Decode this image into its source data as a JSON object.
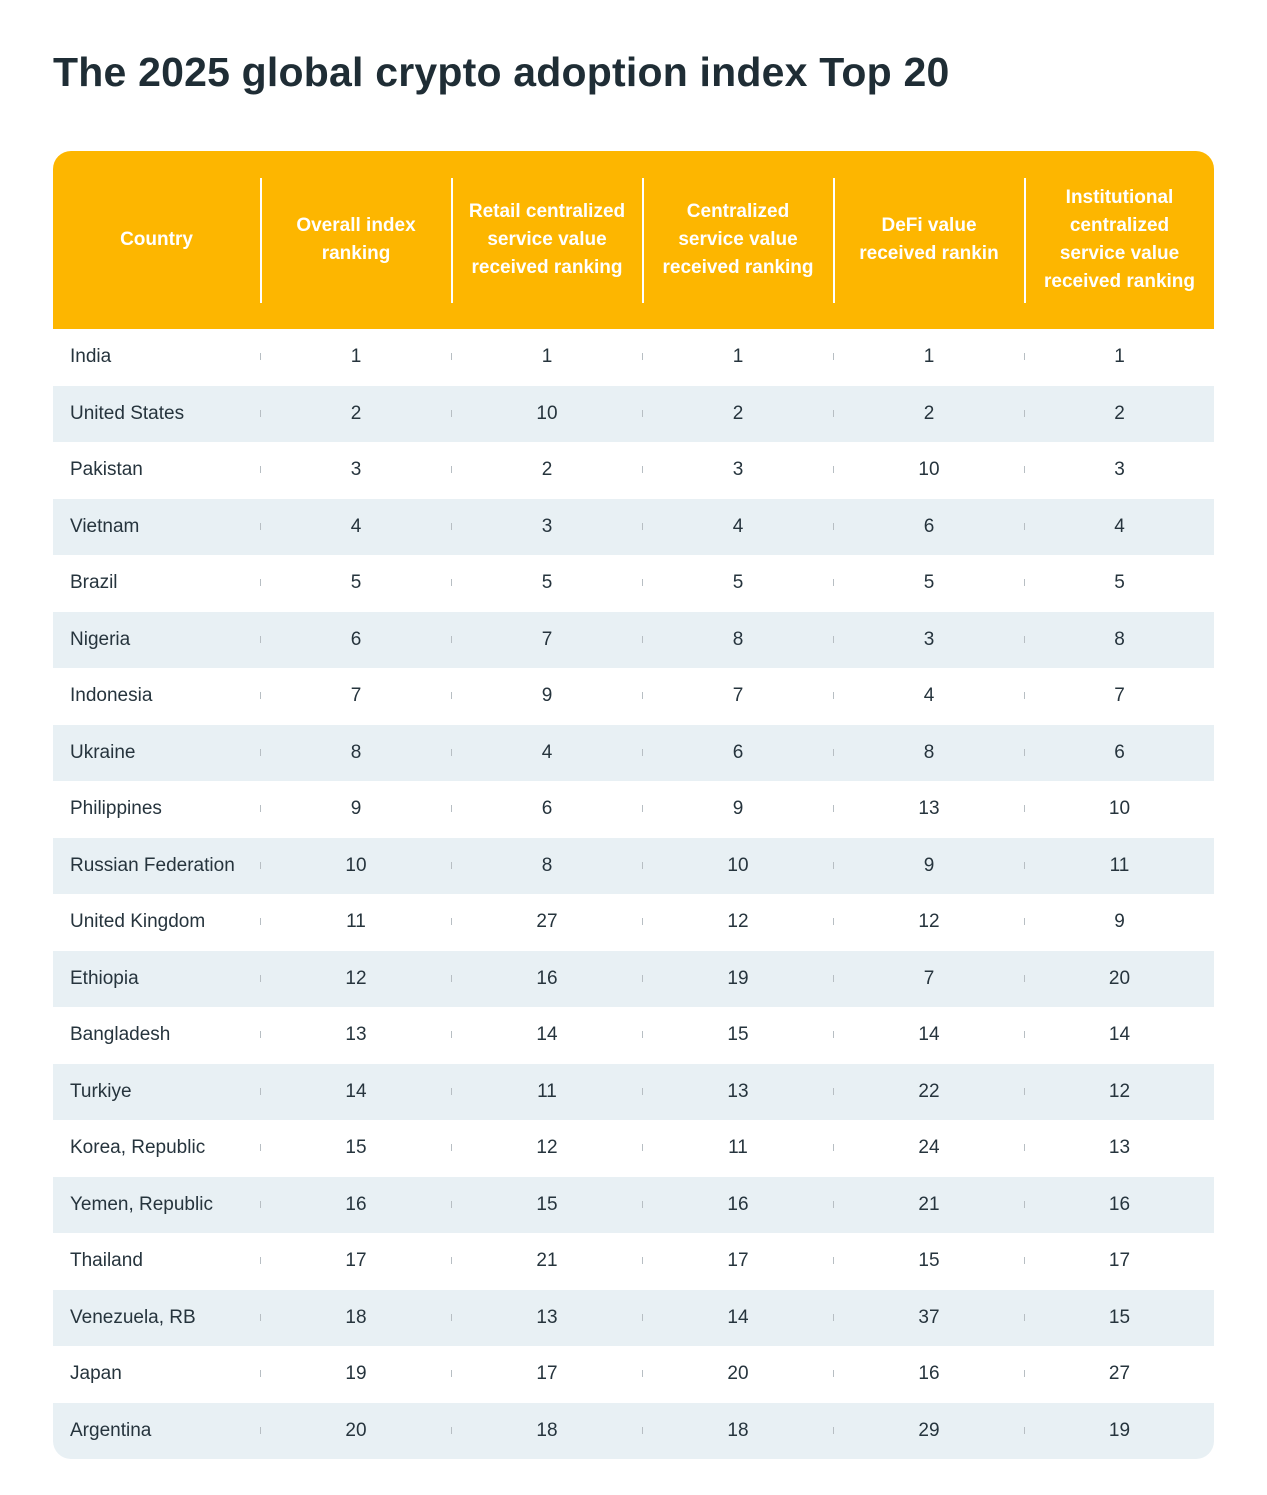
{
  "title": "The 2025 global crypto adoption index Top 20",
  "colors": {
    "header_background": "#fdb600",
    "header_text": "#ffffff",
    "stripe_row": "#e8f0f4",
    "body_text": "#26343d"
  },
  "chart_data": {
    "type": "table",
    "title": "The 2025 global crypto adoption index Top 20",
    "columns": [
      {
        "key": "country",
        "label": "Country"
      },
      {
        "key": "overall",
        "label": "Overall index ranking"
      },
      {
        "key": "retail",
        "label": "Retail centralized service value received ranking"
      },
      {
        "key": "centralized",
        "label": "Centralized service value received ranking"
      },
      {
        "key": "defi",
        "label": "DeFi value received rankin"
      },
      {
        "key": "institutional",
        "label": "Institutional centralized service value received ranking"
      }
    ],
    "rows": [
      {
        "country": "India",
        "overall": 1,
        "retail": 1,
        "centralized": 1,
        "defi": 1,
        "institutional": 1
      },
      {
        "country": "United States",
        "overall": 2,
        "retail": 10,
        "centralized": 2,
        "defi": 2,
        "institutional": 2
      },
      {
        "country": "Pakistan",
        "overall": 3,
        "retail": 2,
        "centralized": 3,
        "defi": 10,
        "institutional": 3
      },
      {
        "country": "Vietnam",
        "overall": 4,
        "retail": 3,
        "centralized": 4,
        "defi": 6,
        "institutional": 4
      },
      {
        "country": "Brazil",
        "overall": 5,
        "retail": 5,
        "centralized": 5,
        "defi": 5,
        "institutional": 5
      },
      {
        "country": "Nigeria",
        "overall": 6,
        "retail": 7,
        "centralized": 8,
        "defi": 3,
        "institutional": 8
      },
      {
        "country": "Indonesia",
        "overall": 7,
        "retail": 9,
        "centralized": 7,
        "defi": 4,
        "institutional": 7
      },
      {
        "country": "Ukraine",
        "overall": 8,
        "retail": 4,
        "centralized": 6,
        "defi": 8,
        "institutional": 6
      },
      {
        "country": "Philippines",
        "overall": 9,
        "retail": 6,
        "centralized": 9,
        "defi": 13,
        "institutional": 10
      },
      {
        "country": "Russian Federation",
        "overall": 10,
        "retail": 8,
        "centralized": 10,
        "defi": 9,
        "institutional": 11
      },
      {
        "country": "United Kingdom",
        "overall": 11,
        "retail": 27,
        "centralized": 12,
        "defi": 12,
        "institutional": 9
      },
      {
        "country": "Ethiopia",
        "overall": 12,
        "retail": 16,
        "centralized": 19,
        "defi": 7,
        "institutional": 20
      },
      {
        "country": "Bangladesh",
        "overall": 13,
        "retail": 14,
        "centralized": 15,
        "defi": 14,
        "institutional": 14
      },
      {
        "country": "Turkiye",
        "overall": 14,
        "retail": 11,
        "centralized": 13,
        "defi": 22,
        "institutional": 12
      },
      {
        "country": "Korea, Republic",
        "overall": 15,
        "retail": 12,
        "centralized": 11,
        "defi": 24,
        "institutional": 13
      },
      {
        "country": "Yemen, Republic",
        "overall": 16,
        "retail": 15,
        "centralized": 16,
        "defi": 21,
        "institutional": 16
      },
      {
        "country": "Thailand",
        "overall": 17,
        "retail": 21,
        "centralized": 17,
        "defi": 15,
        "institutional": 17
      },
      {
        "country": "Venezuela, RB",
        "overall": 18,
        "retail": 13,
        "centralized": 14,
        "defi": 37,
        "institutional": 15
      },
      {
        "country": "Japan",
        "overall": 19,
        "retail": 17,
        "centralized": 20,
        "defi": 16,
        "institutional": 27
      },
      {
        "country": "Argentina",
        "overall": 20,
        "retail": 18,
        "centralized": 18,
        "defi": 29,
        "institutional": 19
      }
    ]
  }
}
